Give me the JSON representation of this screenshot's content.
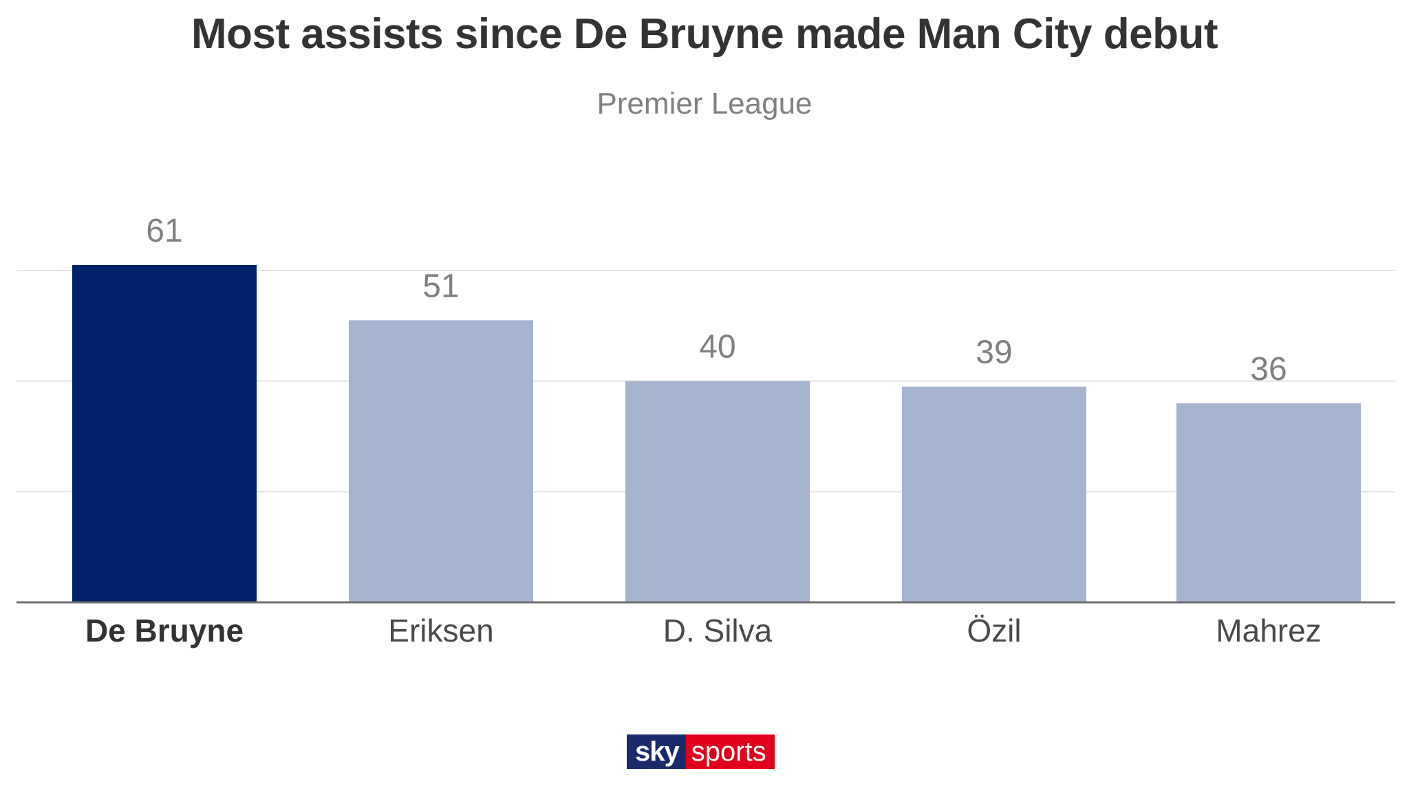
{
  "chart_data": {
    "type": "bar",
    "title": "Most assists since De Bruyne made Man City debut",
    "subtitle": "Premier League",
    "categories": [
      "De Bruyne",
      "Eriksen",
      "D. Silva",
      "Özil",
      "Mahrez"
    ],
    "values": [
      61,
      51,
      40,
      39,
      36
    ],
    "data_labels": [
      "61",
      "51",
      "40",
      "39",
      "36"
    ],
    "highlight_index": 0,
    "ylim": [
      0,
      60
    ],
    "y_gridlines": [
      20,
      40,
      60
    ],
    "grid": true,
    "legend": "none",
    "colors": {
      "highlight": "#00226b",
      "bar": "#a6b3cf",
      "grid": "#e3e3e3",
      "axis": "#6e6e6e",
      "label": "#808080",
      "category": "#4a4a4a",
      "category_highlight": "#333333"
    }
  },
  "logo": {
    "part1": "sky",
    "part2": "sports"
  }
}
